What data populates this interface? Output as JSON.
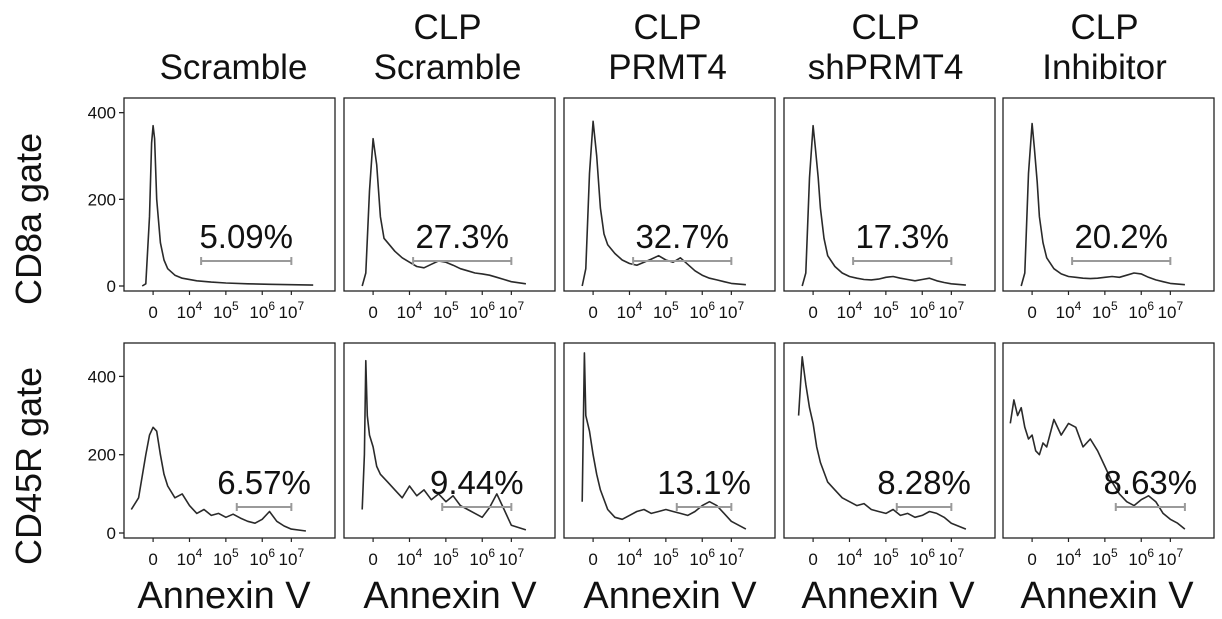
{
  "column_titles": [
    {
      "line1": "",
      "line2": "Scramble"
    },
    {
      "line1": "CLP",
      "line2": "Scramble"
    },
    {
      "line1": "CLP",
      "line2": "PRMT4"
    },
    {
      "line1": "CLP",
      "line2": "shPRMT4"
    },
    {
      "line1": "CLP",
      "line2": "Inhibitor"
    }
  ],
  "row_labels": [
    "CD8a gate",
    "CD45R gate"
  ],
  "x_axis_label": "Annexin V",
  "colors": {
    "trace": "#2a2a2a",
    "gate_bar": "#9a9a9a",
    "axis": "#222222"
  },
  "chart_data": [
    {
      "type": "histogram",
      "row": "CD8a gate",
      "column": "Scramble",
      "xticks": [
        "0",
        "10^4",
        "10^5",
        "10^6",
        "10^7"
      ],
      "yticks": [
        0,
        200,
        400
      ],
      "ylim": [
        0,
        420
      ],
      "gate_percent": "5.09%",
      "gate_range_x": [
        0.66,
        1.9
      ],
      "x": [
        -0.15,
        -0.1,
        -0.05,
        -0.02,
        0,
        0.02,
        0.05,
        0.1,
        0.15,
        0.2,
        0.3,
        0.4,
        0.6,
        0.8,
        1.0,
        1.3,
        1.6,
        1.9,
        2.2
      ],
      "y": [
        0,
        5,
        160,
        330,
        370,
        340,
        200,
        100,
        60,
        40,
        25,
        18,
        12,
        9,
        7,
        5,
        4,
        3,
        2
      ]
    },
    {
      "type": "histogram",
      "row": "CD8a gate",
      "column": "CLP Scramble",
      "xticks": [
        "0",
        "10^4",
        "10^5",
        "10^6",
        "10^7"
      ],
      "yticks": [
        0,
        200,
        400
      ],
      "ylim": [
        0,
        420
      ],
      "gate_percent": "27.3%",
      "gate_range_x": [
        0.55,
        1.9
      ],
      "x": [
        -0.15,
        -0.1,
        -0.05,
        0,
        0.05,
        0.1,
        0.15,
        0.2,
        0.3,
        0.4,
        0.5,
        0.6,
        0.7,
        0.8,
        0.9,
        1.0,
        1.1,
        1.2,
        1.3,
        1.4,
        1.5,
        1.6,
        1.7,
        1.8,
        1.9,
        2.1
      ],
      "y": [
        0,
        30,
        220,
        340,
        280,
        160,
        110,
        100,
        80,
        65,
        55,
        45,
        42,
        50,
        58,
        55,
        48,
        40,
        35,
        30,
        28,
        25,
        20,
        15,
        10,
        5
      ]
    },
    {
      "type": "histogram",
      "row": "CD8a gate",
      "column": "CLP PRMT4",
      "xticks": [
        "0",
        "10^4",
        "10^5",
        "10^6",
        "10^7"
      ],
      "yticks": [
        0,
        200,
        400
      ],
      "ylim": [
        0,
        420
      ],
      "gate_percent": "32.7%",
      "gate_range_x": [
        0.55,
        1.9
      ],
      "x": [
        -0.15,
        -0.1,
        -0.05,
        0,
        0.05,
        0.1,
        0.15,
        0.2,
        0.3,
        0.4,
        0.5,
        0.6,
        0.7,
        0.8,
        0.9,
        1.0,
        1.1,
        1.2,
        1.3,
        1.4,
        1.5,
        1.6,
        1.7,
        1.8,
        1.9,
        2.1
      ],
      "y": [
        0,
        40,
        260,
        380,
        300,
        180,
        120,
        95,
        75,
        60,
        52,
        48,
        55,
        62,
        70,
        60,
        55,
        65,
        50,
        35,
        25,
        18,
        14,
        10,
        6,
        3
      ]
    },
    {
      "type": "histogram",
      "row": "CD8a gate",
      "column": "CLP shPRMT4",
      "xticks": [
        "0",
        "10^4",
        "10^5",
        "10^6",
        "10^7"
      ],
      "yticks": [
        0,
        200,
        400
      ],
      "ylim": [
        0,
        420
      ],
      "gate_percent": "17.3%",
      "gate_range_x": [
        0.55,
        1.9
      ],
      "x": [
        -0.15,
        -0.1,
        -0.05,
        0,
        0.03,
        0.07,
        0.1,
        0.15,
        0.2,
        0.3,
        0.4,
        0.5,
        0.6,
        0.7,
        0.8,
        0.9,
        1.0,
        1.1,
        1.2,
        1.3,
        1.4,
        1.5,
        1.6,
        1.7,
        1.8,
        1.9,
        2.1
      ],
      "y": [
        0,
        30,
        250,
        370,
        320,
        250,
        180,
        110,
        70,
        45,
        30,
        22,
        18,
        15,
        14,
        16,
        20,
        22,
        18,
        15,
        12,
        15,
        18,
        12,
        8,
        5,
        2
      ]
    },
    {
      "type": "histogram",
      "row": "CD8a gate",
      "column": "CLP Inhibitor",
      "xticks": [
        "0",
        "10^4",
        "10^5",
        "10^6",
        "10^7"
      ],
      "yticks": [
        0,
        200,
        400
      ],
      "ylim": [
        0,
        420
      ],
      "gate_percent": "20.2%",
      "gate_range_x": [
        0.55,
        1.9
      ],
      "x": [
        -0.15,
        -0.1,
        -0.05,
        0,
        0.03,
        0.07,
        0.1,
        0.15,
        0.2,
        0.3,
        0.4,
        0.5,
        0.6,
        0.7,
        0.8,
        0.9,
        1.0,
        1.1,
        1.2,
        1.3,
        1.4,
        1.5,
        1.6,
        1.7,
        1.8,
        1.9,
        2.1
      ],
      "y": [
        0,
        30,
        260,
        375,
        320,
        240,
        160,
        100,
        65,
        40,
        28,
        22,
        20,
        18,
        17,
        18,
        20,
        22,
        20,
        25,
        30,
        28,
        20,
        14,
        10,
        6,
        3
      ]
    },
    {
      "type": "histogram",
      "row": "CD45R gate",
      "column": "Scramble",
      "xticks": [
        "0",
        "10^4",
        "10^5",
        "10^6",
        "10^7"
      ],
      "yticks": [
        0,
        200,
        400
      ],
      "ylim": [
        0,
        470
      ],
      "gate_percent": "6.57%",
      "gate_range_x": [
        1.15,
        1.9
      ],
      "x": [
        -0.3,
        -0.2,
        -0.1,
        -0.05,
        0,
        0.05,
        0.1,
        0.15,
        0.2,
        0.3,
        0.4,
        0.5,
        0.6,
        0.7,
        0.8,
        0.9,
        1.0,
        1.1,
        1.2,
        1.3,
        1.4,
        1.5,
        1.6,
        1.7,
        1.8,
        1.9,
        2.1
      ],
      "y": [
        60,
        90,
        200,
        250,
        270,
        260,
        200,
        150,
        120,
        90,
        100,
        70,
        50,
        60,
        45,
        50,
        40,
        48,
        38,
        30,
        25,
        35,
        55,
        30,
        18,
        10,
        5
      ]
    },
    {
      "type": "histogram",
      "row": "CD45R gate",
      "column": "CLP Scramble",
      "xticks": [
        "0",
        "10^4",
        "10^5",
        "10^6",
        "10^7"
      ],
      "yticks": [
        0,
        200,
        400
      ],
      "ylim": [
        0,
        470
      ],
      "gate_percent": "9.44%",
      "gate_range_x": [
        0.95,
        1.9
      ],
      "x": [
        -0.15,
        -0.12,
        -0.1,
        -0.08,
        -0.05,
        0,
        0.05,
        0.1,
        0.2,
        0.3,
        0.4,
        0.5,
        0.6,
        0.7,
        0.8,
        0.9,
        1.0,
        1.1,
        1.2,
        1.3,
        1.4,
        1.5,
        1.6,
        1.7,
        1.8,
        1.9,
        2.1
      ],
      "y": [
        60,
        200,
        440,
        300,
        250,
        220,
        170,
        150,
        130,
        110,
        90,
        120,
        95,
        110,
        85,
        100,
        80,
        95,
        70,
        60,
        50,
        40,
        65,
        100,
        60,
        20,
        8
      ]
    },
    {
      "type": "histogram",
      "row": "CD45R gate",
      "column": "CLP PRMT4",
      "xticks": [
        "0",
        "10^4",
        "10^5",
        "10^6",
        "10^7"
      ],
      "yticks": [
        0,
        200,
        400
      ],
      "ylim": [
        0,
        470
      ],
      "gate_percent": "13.1%",
      "gate_range_x": [
        1.15,
        1.9
      ],
      "x": [
        -0.15,
        -0.12,
        -0.1,
        -0.05,
        0,
        0.05,
        0.1,
        0.2,
        0.3,
        0.4,
        0.5,
        0.6,
        0.7,
        0.8,
        0.9,
        1.0,
        1.1,
        1.2,
        1.3,
        1.4,
        1.5,
        1.6,
        1.7,
        1.8,
        1.9,
        2.1
      ],
      "y": [
        80,
        460,
        300,
        260,
        200,
        150,
        110,
        60,
        40,
        35,
        45,
        55,
        60,
        50,
        55,
        60,
        55,
        50,
        45,
        55,
        70,
        80,
        70,
        50,
        30,
        10
      ]
    },
    {
      "type": "histogram",
      "row": "CD45R gate",
      "column": "CLP shPRMT4",
      "xticks": [
        "0",
        "10^4",
        "10^5",
        "10^6",
        "10^7"
      ],
      "yticks": [
        0,
        200,
        400
      ],
      "ylim": [
        0,
        470
      ],
      "gate_percent": "8.28%",
      "gate_range_x": [
        1.15,
        1.9
      ],
      "x": [
        -0.2,
        -0.15,
        -0.1,
        -0.05,
        0,
        0.05,
        0.1,
        0.2,
        0.3,
        0.4,
        0.5,
        0.6,
        0.7,
        0.8,
        0.9,
        1.0,
        1.1,
        1.2,
        1.3,
        1.4,
        1.5,
        1.6,
        1.7,
        1.8,
        1.9,
        2.1
      ],
      "y": [
        300,
        450,
        380,
        320,
        280,
        220,
        180,
        130,
        110,
        90,
        80,
        70,
        75,
        60,
        55,
        50,
        60,
        45,
        50,
        40,
        45,
        55,
        50,
        40,
        25,
        10
      ]
    },
    {
      "type": "histogram",
      "row": "CD45R gate",
      "column": "CLP Inhibitor",
      "xticks": [
        "0",
        "10^4",
        "10^5",
        "10^6",
        "10^7"
      ],
      "yticks": [
        0,
        200,
        400
      ],
      "ylim": [
        0,
        470
      ],
      "gate_percent": "8.63%",
      "gate_range_x": [
        1.15,
        2.1
      ],
      "x": [
        -0.3,
        -0.25,
        -0.2,
        -0.15,
        -0.1,
        -0.05,
        0,
        0.05,
        0.1,
        0.15,
        0.2,
        0.3,
        0.4,
        0.5,
        0.6,
        0.7,
        0.8,
        0.9,
        1.0,
        1.1,
        1.2,
        1.3,
        1.4,
        1.5,
        1.6,
        1.7,
        1.8,
        1.9,
        2.0,
        2.1
      ],
      "y": [
        280,
        340,
        300,
        320,
        270,
        240,
        250,
        210,
        200,
        230,
        220,
        290,
        250,
        280,
        270,
        220,
        240,
        210,
        170,
        130,
        100,
        80,
        70,
        85,
        95,
        80,
        50,
        35,
        25,
        10
      ]
    }
  ]
}
